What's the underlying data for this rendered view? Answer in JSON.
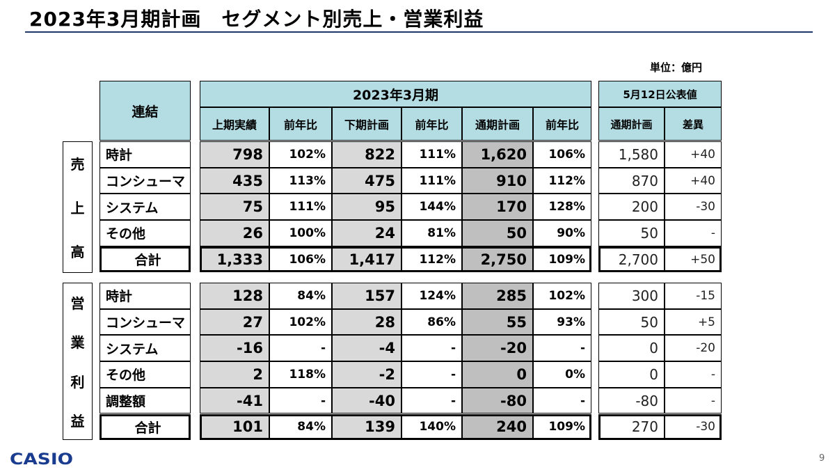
{
  "title": "2023年3月期計画　セグメント別売上・営業利益",
  "unit_label": "単位：億円",
  "page_number": "9",
  "logo": "CASIO",
  "header": {
    "consolidated": "連結",
    "period": "2023年3月期",
    "announced": "5月12日公表値",
    "columns": [
      "上期実績",
      "前年比",
      "下期計画",
      "前年比",
      "通期計画",
      "前年比"
    ],
    "announced_columns": [
      "通期計画",
      "差異"
    ]
  },
  "sections": [
    {
      "side_label": [
        "売",
        "上",
        "高"
      ],
      "rows": [
        {
          "name": "時計",
          "values": [
            "798",
            "102%",
            "822",
            "111%",
            "1,620",
            "106%"
          ],
          "announced": [
            "1,580",
            "+40"
          ]
        },
        {
          "name": "コンシューマ",
          "values": [
            "435",
            "113%",
            "475",
            "111%",
            "910",
            "112%"
          ],
          "announced": [
            "870",
            "+40"
          ]
        },
        {
          "name": "システム",
          "values": [
            "75",
            "111%",
            "95",
            "144%",
            "170",
            "128%"
          ],
          "announced": [
            "200",
            "-30"
          ]
        },
        {
          "name": "その他",
          "values": [
            "26",
            "100%",
            "24",
            "81%",
            "50",
            "90%"
          ],
          "announced": [
            "50",
            "-"
          ]
        },
        {
          "name": "合計",
          "values": [
            "1,333",
            "106%",
            "1,417",
            "112%",
            "2,750",
            "109%"
          ],
          "announced": [
            "2,700",
            "+50"
          ],
          "total": true
        }
      ]
    },
    {
      "side_label": [
        "営",
        "業",
        "利",
        "益"
      ],
      "rows": [
        {
          "name": "時計",
          "values": [
            "128",
            "84%",
            "157",
            "124%",
            "285",
            "102%"
          ],
          "announced": [
            "300",
            "-15"
          ]
        },
        {
          "name": "コンシューマ",
          "values": [
            "27",
            "102%",
            "28",
            "86%",
            "55",
            "93%"
          ],
          "announced": [
            "50",
            "+5"
          ]
        },
        {
          "name": "システム",
          "values": [
            "-16",
            "-",
            "-4",
            "-",
            "-20",
            "-"
          ],
          "announced": [
            "0",
            "-20"
          ]
        },
        {
          "name": "その他",
          "values": [
            "2",
            "118%",
            "-2",
            "-",
            "0",
            "0%"
          ],
          "announced": [
            "0",
            "-"
          ]
        },
        {
          "name": "調整額",
          "values": [
            "-41",
            "-",
            "-40",
            "-",
            "-80",
            "-"
          ],
          "announced": [
            "-80",
            "-"
          ]
        },
        {
          "name": "合計",
          "values": [
            "101",
            "84%",
            "139",
            "140%",
            "240",
            "109%"
          ],
          "announced": [
            "270",
            "-30"
          ],
          "total": true
        }
      ]
    }
  ],
  "colors": {
    "header_bg": "#b4dde3",
    "gray_light": "#d9d9d9",
    "gray_dark": "#bfbfbf",
    "title_rule": "#1f3864",
    "logo": "#1a3c8f"
  }
}
